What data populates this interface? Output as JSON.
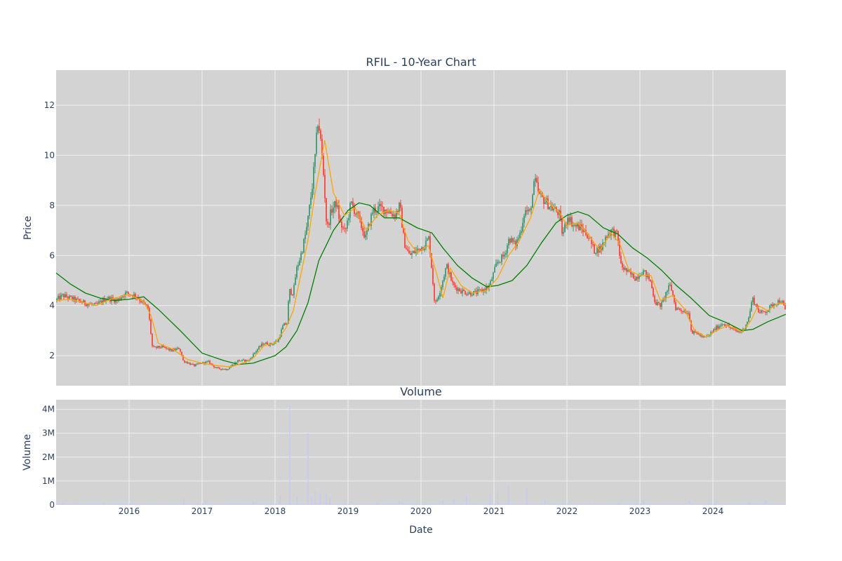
{
  "chart_data": {
    "type": "candlestick",
    "title": "RFIL - 10-Year Chart",
    "colors": {
      "plot_bg": "#d3d3d3",
      "grid": "#eef0f3",
      "increasing": "#3d9970",
      "decreasing": "#ff4136",
      "ma_short": "#ffa500",
      "ma_long": "#008000",
      "volume_bar": "#c8c8f0"
    },
    "price_panel": {
      "ylabel": "Price",
      "ylim": [
        0.8,
        13.4
      ],
      "yticks": [
        2,
        4,
        6,
        8,
        10,
        12
      ],
      "key_points": [
        {
          "t": 2015.0,
          "p": 4.2
        },
        {
          "t": 2015.1,
          "p": 4.4
        },
        {
          "t": 2015.3,
          "p": 4.2
        },
        {
          "t": 2015.4,
          "p": 4.1
        },
        {
          "t": 2015.55,
          "p": 4.0
        },
        {
          "t": 2015.7,
          "p": 4.3
        },
        {
          "t": 2015.85,
          "p": 4.2
        },
        {
          "t": 2015.95,
          "p": 4.5
        },
        {
          "t": 2016.1,
          "p": 4.4
        },
        {
          "t": 2016.2,
          "p": 4.1
        },
        {
          "t": 2016.27,
          "p": 3.9
        },
        {
          "t": 2016.33,
          "p": 2.3
        },
        {
          "t": 2016.45,
          "p": 2.35
        },
        {
          "t": 2016.6,
          "p": 2.2
        },
        {
          "t": 2016.7,
          "p": 2.3
        },
        {
          "t": 2016.75,
          "p": 1.8
        },
        {
          "t": 2016.9,
          "p": 1.6
        },
        {
          "t": 2017.0,
          "p": 1.7
        },
        {
          "t": 2017.1,
          "p": 1.75
        },
        {
          "t": 2017.2,
          "p": 1.5
        },
        {
          "t": 2017.35,
          "p": 1.45
        },
        {
          "t": 2017.5,
          "p": 1.8
        },
        {
          "t": 2017.65,
          "p": 1.8
        },
        {
          "t": 2017.75,
          "p": 2.2
        },
        {
          "t": 2017.85,
          "p": 2.5
        },
        {
          "t": 2017.95,
          "p": 2.45
        },
        {
          "t": 2018.05,
          "p": 2.6
        },
        {
          "t": 2018.12,
          "p": 3.2
        },
        {
          "t": 2018.18,
          "p": 3.3
        },
        {
          "t": 2018.2,
          "p": 4.6
        },
        {
          "t": 2018.26,
          "p": 4.5
        },
        {
          "t": 2018.3,
          "p": 5.4
        },
        {
          "t": 2018.38,
          "p": 6.2
        },
        {
          "t": 2018.45,
          "p": 7.2
        },
        {
          "t": 2018.52,
          "p": 8.8
        },
        {
          "t": 2018.56,
          "p": 10.0
        },
        {
          "t": 2018.6,
          "p": 11.5
        },
        {
          "t": 2018.64,
          "p": 10.4
        },
        {
          "t": 2018.68,
          "p": 9.0
        },
        {
          "t": 2018.72,
          "p": 7.0
        },
        {
          "t": 2018.78,
          "p": 7.8
        },
        {
          "t": 2018.85,
          "p": 8.1
        },
        {
          "t": 2018.9,
          "p": 7.3
        },
        {
          "t": 2018.97,
          "p": 6.9
        },
        {
          "t": 2019.05,
          "p": 8.1
        },
        {
          "t": 2019.15,
          "p": 7.5
        },
        {
          "t": 2019.25,
          "p": 6.7
        },
        {
          "t": 2019.35,
          "p": 7.8
        },
        {
          "t": 2019.45,
          "p": 7.9
        },
        {
          "t": 2019.55,
          "p": 7.8
        },
        {
          "t": 2019.65,
          "p": 7.6
        },
        {
          "t": 2019.72,
          "p": 8.0
        },
        {
          "t": 2019.78,
          "p": 6.5
        },
        {
          "t": 2019.85,
          "p": 6.0
        },
        {
          "t": 2019.95,
          "p": 6.2
        },
        {
          "t": 2020.05,
          "p": 6.4
        },
        {
          "t": 2020.12,
          "p": 6.7
        },
        {
          "t": 2020.2,
          "p": 4.0
        },
        {
          "t": 2020.28,
          "p": 4.7
        },
        {
          "t": 2020.36,
          "p": 5.6
        },
        {
          "t": 2020.45,
          "p": 4.8
        },
        {
          "t": 2020.55,
          "p": 4.6
        },
        {
          "t": 2020.65,
          "p": 4.5
        },
        {
          "t": 2020.75,
          "p": 4.5
        },
        {
          "t": 2020.85,
          "p": 4.6
        },
        {
          "t": 2020.95,
          "p": 4.8
        },
        {
          "t": 2021.05,
          "p": 5.7
        },
        {
          "t": 2021.15,
          "p": 6.0
        },
        {
          "t": 2021.22,
          "p": 6.7
        },
        {
          "t": 2021.3,
          "p": 6.4
        },
        {
          "t": 2021.37,
          "p": 6.9
        },
        {
          "t": 2021.43,
          "p": 7.8
        },
        {
          "t": 2021.5,
          "p": 7.7
        },
        {
          "t": 2021.57,
          "p": 9.0
        },
        {
          "t": 2021.63,
          "p": 8.4
        },
        {
          "t": 2021.7,
          "p": 8.2
        },
        {
          "t": 2021.8,
          "p": 7.9
        },
        {
          "t": 2021.9,
          "p": 7.7
        },
        {
          "t": 2021.95,
          "p": 6.8
        },
        {
          "t": 2022.02,
          "p": 7.6
        },
        {
          "t": 2022.1,
          "p": 7.2
        },
        {
          "t": 2022.2,
          "p": 7.1
        },
        {
          "t": 2022.3,
          "p": 6.8
        },
        {
          "t": 2022.38,
          "p": 6.2
        },
        {
          "t": 2022.48,
          "p": 6.3
        },
        {
          "t": 2022.55,
          "p": 6.8
        },
        {
          "t": 2022.62,
          "p": 7.0
        },
        {
          "t": 2022.7,
          "p": 6.8
        },
        {
          "t": 2022.75,
          "p": 5.6
        },
        {
          "t": 2022.85,
          "p": 5.3
        },
        {
          "t": 2022.95,
          "p": 5.1
        },
        {
          "t": 2023.05,
          "p": 5.4
        },
        {
          "t": 2023.15,
          "p": 5.0
        },
        {
          "t": 2023.22,
          "p": 4.1
        },
        {
          "t": 2023.3,
          "p": 4.0
        },
        {
          "t": 2023.38,
          "p": 4.6
        },
        {
          "t": 2023.43,
          "p": 4.8
        },
        {
          "t": 2023.5,
          "p": 3.9
        },
        {
          "t": 2023.6,
          "p": 3.8
        },
        {
          "t": 2023.68,
          "p": 3.7
        },
        {
          "t": 2023.72,
          "p": 2.9
        },
        {
          "t": 2023.8,
          "p": 2.9
        },
        {
          "t": 2023.88,
          "p": 2.7
        },
        {
          "t": 2023.95,
          "p": 2.8
        },
        {
          "t": 2024.05,
          "p": 3.1
        },
        {
          "t": 2024.15,
          "p": 3.3
        },
        {
          "t": 2024.25,
          "p": 3.1
        },
        {
          "t": 2024.35,
          "p": 2.95
        },
        {
          "t": 2024.42,
          "p": 3.0
        },
        {
          "t": 2024.5,
          "p": 3.5
        },
        {
          "t": 2024.55,
          "p": 4.3
        },
        {
          "t": 2024.6,
          "p": 4.0
        },
        {
          "t": 2024.65,
          "p": 3.7
        },
        {
          "t": 2024.75,
          "p": 3.8
        },
        {
          "t": 2024.85,
          "p": 4.1
        },
        {
          "t": 2024.95,
          "p": 4.2
        },
        {
          "t": 2025.0,
          "p": 3.8
        }
      ],
      "ma_short": [
        {
          "t": 2015.0,
          "p": 4.2
        },
        {
          "t": 2015.2,
          "p": 4.25
        },
        {
          "t": 2015.4,
          "p": 4.1
        },
        {
          "t": 2015.55,
          "p": 4.0
        },
        {
          "t": 2015.75,
          "p": 4.25
        },
        {
          "t": 2016.0,
          "p": 4.45
        },
        {
          "t": 2016.2,
          "p": 4.15
        },
        {
          "t": 2016.3,
          "p": 3.6
        },
        {
          "t": 2016.4,
          "p": 2.5
        },
        {
          "t": 2016.6,
          "p": 2.25
        },
        {
          "t": 2016.8,
          "p": 1.85
        },
        {
          "t": 2017.0,
          "p": 1.7
        },
        {
          "t": 2017.2,
          "p": 1.6
        },
        {
          "t": 2017.4,
          "p": 1.55
        },
        {
          "t": 2017.6,
          "p": 1.75
        },
        {
          "t": 2017.7,
          "p": 1.9
        },
        {
          "t": 2017.85,
          "p": 2.4
        },
        {
          "t": 2018.0,
          "p": 2.5
        },
        {
          "t": 2018.15,
          "p": 3.1
        },
        {
          "t": 2018.25,
          "p": 3.8
        },
        {
          "t": 2018.35,
          "p": 5.2
        },
        {
          "t": 2018.45,
          "p": 6.6
        },
        {
          "t": 2018.55,
          "p": 8.5
        },
        {
          "t": 2018.68,
          "p": 10.6
        },
        {
          "t": 2018.8,
          "p": 8.5
        },
        {
          "t": 2018.95,
          "p": 7.6
        },
        {
          "t": 2019.1,
          "p": 7.9
        },
        {
          "t": 2019.25,
          "p": 7.0
        },
        {
          "t": 2019.4,
          "p": 7.6
        },
        {
          "t": 2019.55,
          "p": 7.8
        },
        {
          "t": 2019.7,
          "p": 7.7
        },
        {
          "t": 2019.82,
          "p": 6.6
        },
        {
          "t": 2019.95,
          "p": 6.1
        },
        {
          "t": 2020.1,
          "p": 6.4
        },
        {
          "t": 2020.22,
          "p": 5.2
        },
        {
          "t": 2020.3,
          "p": 4.3
        },
        {
          "t": 2020.4,
          "p": 5.5
        },
        {
          "t": 2020.55,
          "p": 4.8
        },
        {
          "t": 2020.7,
          "p": 4.5
        },
        {
          "t": 2020.9,
          "p": 4.6
        },
        {
          "t": 2021.05,
          "p": 5.1
        },
        {
          "t": 2021.2,
          "p": 6.0
        },
        {
          "t": 2021.35,
          "p": 6.6
        },
        {
          "t": 2021.5,
          "p": 7.5
        },
        {
          "t": 2021.62,
          "p": 8.6
        },
        {
          "t": 2021.75,
          "p": 8.1
        },
        {
          "t": 2021.9,
          "p": 7.7
        },
        {
          "t": 2022.0,
          "p": 7.2
        },
        {
          "t": 2022.15,
          "p": 7.3
        },
        {
          "t": 2022.3,
          "p": 6.8
        },
        {
          "t": 2022.45,
          "p": 6.2
        },
        {
          "t": 2022.6,
          "p": 6.9
        },
        {
          "t": 2022.72,
          "p": 6.5
        },
        {
          "t": 2022.85,
          "p": 5.4
        },
        {
          "t": 2023.0,
          "p": 5.2
        },
        {
          "t": 2023.15,
          "p": 5.2
        },
        {
          "t": 2023.28,
          "p": 4.2
        },
        {
          "t": 2023.45,
          "p": 4.4
        },
        {
          "t": 2023.6,
          "p": 3.9
        },
        {
          "t": 2023.75,
          "p": 3.0
        },
        {
          "t": 2023.9,
          "p": 2.75
        },
        {
          "t": 2024.05,
          "p": 3.0
        },
        {
          "t": 2024.2,
          "p": 3.2
        },
        {
          "t": 2024.4,
          "p": 2.95
        },
        {
          "t": 2024.52,
          "p": 3.4
        },
        {
          "t": 2024.62,
          "p": 4.0
        },
        {
          "t": 2024.75,
          "p": 3.8
        },
        {
          "t": 2024.9,
          "p": 4.1
        },
        {
          "t": 2025.0,
          "p": 4.05
        }
      ],
      "ma_long": [
        {
          "t": 2015.0,
          "p": 5.3
        },
        {
          "t": 2015.2,
          "p": 4.85
        },
        {
          "t": 2015.4,
          "p": 4.5
        },
        {
          "t": 2015.6,
          "p": 4.3
        },
        {
          "t": 2015.8,
          "p": 4.2
        },
        {
          "t": 2016.0,
          "p": 4.25
        },
        {
          "t": 2016.2,
          "p": 4.35
        },
        {
          "t": 2016.4,
          "p": 3.85
        },
        {
          "t": 2016.7,
          "p": 3.0
        },
        {
          "t": 2017.0,
          "p": 2.1
        },
        {
          "t": 2017.3,
          "p": 1.8
        },
        {
          "t": 2017.5,
          "p": 1.65
        },
        {
          "t": 2017.7,
          "p": 1.7
        },
        {
          "t": 2018.0,
          "p": 2.0
        },
        {
          "t": 2018.15,
          "p": 2.35
        },
        {
          "t": 2018.3,
          "p": 3.0
        },
        {
          "t": 2018.45,
          "p": 4.1
        },
        {
          "t": 2018.6,
          "p": 5.8
        },
        {
          "t": 2018.8,
          "p": 7.0
        },
        {
          "t": 2019.0,
          "p": 7.8
        },
        {
          "t": 2019.15,
          "p": 8.1
        },
        {
          "t": 2019.3,
          "p": 8.0
        },
        {
          "t": 2019.5,
          "p": 7.5
        },
        {
          "t": 2019.7,
          "p": 7.5
        },
        {
          "t": 2019.95,
          "p": 7.1
        },
        {
          "t": 2020.15,
          "p": 6.9
        },
        {
          "t": 2020.3,
          "p": 6.3
        },
        {
          "t": 2020.5,
          "p": 5.6
        },
        {
          "t": 2020.7,
          "p": 5.1
        },
        {
          "t": 2020.9,
          "p": 4.75
        },
        {
          "t": 2021.05,
          "p": 4.8
        },
        {
          "t": 2021.25,
          "p": 5.0
        },
        {
          "t": 2021.45,
          "p": 5.6
        },
        {
          "t": 2021.65,
          "p": 6.5
        },
        {
          "t": 2021.85,
          "p": 7.3
        },
        {
          "t": 2022.0,
          "p": 7.6
        },
        {
          "t": 2022.15,
          "p": 7.75
        },
        {
          "t": 2022.3,
          "p": 7.6
        },
        {
          "t": 2022.5,
          "p": 7.1
        },
        {
          "t": 2022.7,
          "p": 6.85
        },
        {
          "t": 2022.9,
          "p": 6.3
        },
        {
          "t": 2023.1,
          "p": 5.9
        },
        {
          "t": 2023.3,
          "p": 5.4
        },
        {
          "t": 2023.5,
          "p": 4.8
        },
        {
          "t": 2023.7,
          "p": 4.3
        },
        {
          "t": 2023.95,
          "p": 3.6
        },
        {
          "t": 2024.2,
          "p": 3.3
        },
        {
          "t": 2024.4,
          "p": 3.0
        },
        {
          "t": 2024.55,
          "p": 3.05
        },
        {
          "t": 2024.75,
          "p": 3.35
        },
        {
          "t": 2025.0,
          "p": 3.65
        }
      ]
    },
    "volume_panel": {
      "title": "Volume",
      "ylabel": "Volume",
      "ylim": [
        0,
        4400000
      ],
      "yticks": [
        0,
        1000000,
        2000000,
        3000000,
        4000000
      ],
      "ytick_labels": [
        "0",
        "1M",
        "2M",
        "3M",
        "4M"
      ],
      "spikes": [
        {
          "t": 2015.65,
          "v": 100000
        },
        {
          "t": 2016.75,
          "v": 280000
        },
        {
          "t": 2017.05,
          "v": 220000
        },
        {
          "t": 2017.7,
          "v": 150000
        },
        {
          "t": 2018.07,
          "v": 400000
        },
        {
          "t": 2018.2,
          "v": 4200000
        },
        {
          "t": 2018.3,
          "v": 350000
        },
        {
          "t": 2018.45,
          "v": 3000000
        },
        {
          "t": 2018.5,
          "v": 320000
        },
        {
          "t": 2018.55,
          "v": 620000
        },
        {
          "t": 2018.62,
          "v": 450000
        },
        {
          "t": 2018.7,
          "v": 480000
        },
        {
          "t": 2018.75,
          "v": 350000
        },
        {
          "t": 2019.7,
          "v": 150000
        },
        {
          "t": 2020.3,
          "v": 200000
        },
        {
          "t": 2020.45,
          "v": 230000
        },
        {
          "t": 2020.62,
          "v": 380000
        },
        {
          "t": 2020.95,
          "v": 420000
        },
        {
          "t": 2021.05,
          "v": 550000
        },
        {
          "t": 2021.2,
          "v": 800000
        },
        {
          "t": 2021.45,
          "v": 720000
        },
        {
          "t": 2021.7,
          "v": 200000
        },
        {
          "t": 2023.05,
          "v": 280000
        },
        {
          "t": 2023.68,
          "v": 150000
        },
        {
          "t": 2024.5,
          "v": 140000
        },
        {
          "t": 2024.72,
          "v": 180000
        }
      ]
    },
    "xaxis": {
      "label": "Date",
      "xlim": [
        2015.0,
        2025.0
      ],
      "ticks": [
        2016,
        2017,
        2018,
        2019,
        2020,
        2021,
        2022,
        2023,
        2024
      ],
      "tick_labels": [
        "2016",
        "2017",
        "2018",
        "2019",
        "2020",
        "2021",
        "2022",
        "2023",
        "2024"
      ]
    },
    "grid": true
  }
}
